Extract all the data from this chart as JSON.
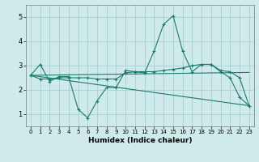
{
  "xlabel": "Humidex (Indice chaleur)",
  "background_color": "#ceeaea",
  "grid_color": "#aacfcf",
  "line_color": "#1a7a6e",
  "xlim": [
    -0.5,
    23.5
  ],
  "ylim": [
    0.5,
    5.5
  ],
  "yticks": [
    1,
    2,
    3,
    4,
    5
  ],
  "xticks": [
    0,
    1,
    2,
    3,
    4,
    5,
    6,
    7,
    8,
    9,
    10,
    11,
    12,
    13,
    14,
    15,
    16,
    17,
    18,
    19,
    20,
    21,
    22,
    23
  ],
  "lines": [
    {
      "x": [
        0,
        1,
        2,
        3,
        4,
        5,
        6,
        7,
        8,
        9,
        10,
        11,
        12,
        13,
        14,
        15,
        16,
        17,
        18,
        19,
        20,
        21,
        22,
        23
      ],
      "y": [
        2.6,
        3.05,
        2.35,
        2.55,
        2.55,
        1.2,
        0.85,
        1.55,
        2.1,
        2.1,
        2.8,
        2.75,
        2.7,
        3.6,
        4.7,
        5.05,
        3.6,
        2.75,
        3.05,
        3.05,
        2.75,
        2.5,
        1.7,
        1.35
      ],
      "marker": true
    },
    {
      "x": [
        0,
        1,
        2,
        3,
        4,
        5,
        6,
        7,
        8,
        9,
        10,
        11,
        12,
        13,
        14,
        15,
        16,
        17,
        18,
        19,
        20,
        21,
        22,
        23
      ],
      "y": [
        2.6,
        2.45,
        2.45,
        2.5,
        2.5,
        2.5,
        2.5,
        2.45,
        2.45,
        2.45,
        2.7,
        2.75,
        2.75,
        2.75,
        2.8,
        2.85,
        2.9,
        3.0,
        3.05,
        3.05,
        2.8,
        2.75,
        2.5,
        1.35
      ],
      "marker": true
    },
    {
      "x": [
        0,
        23
      ],
      "y": [
        2.6,
        1.35
      ],
      "marker": false
    },
    {
      "x": [
        0,
        23
      ],
      "y": [
        2.6,
        2.72
      ],
      "marker": false
    }
  ]
}
